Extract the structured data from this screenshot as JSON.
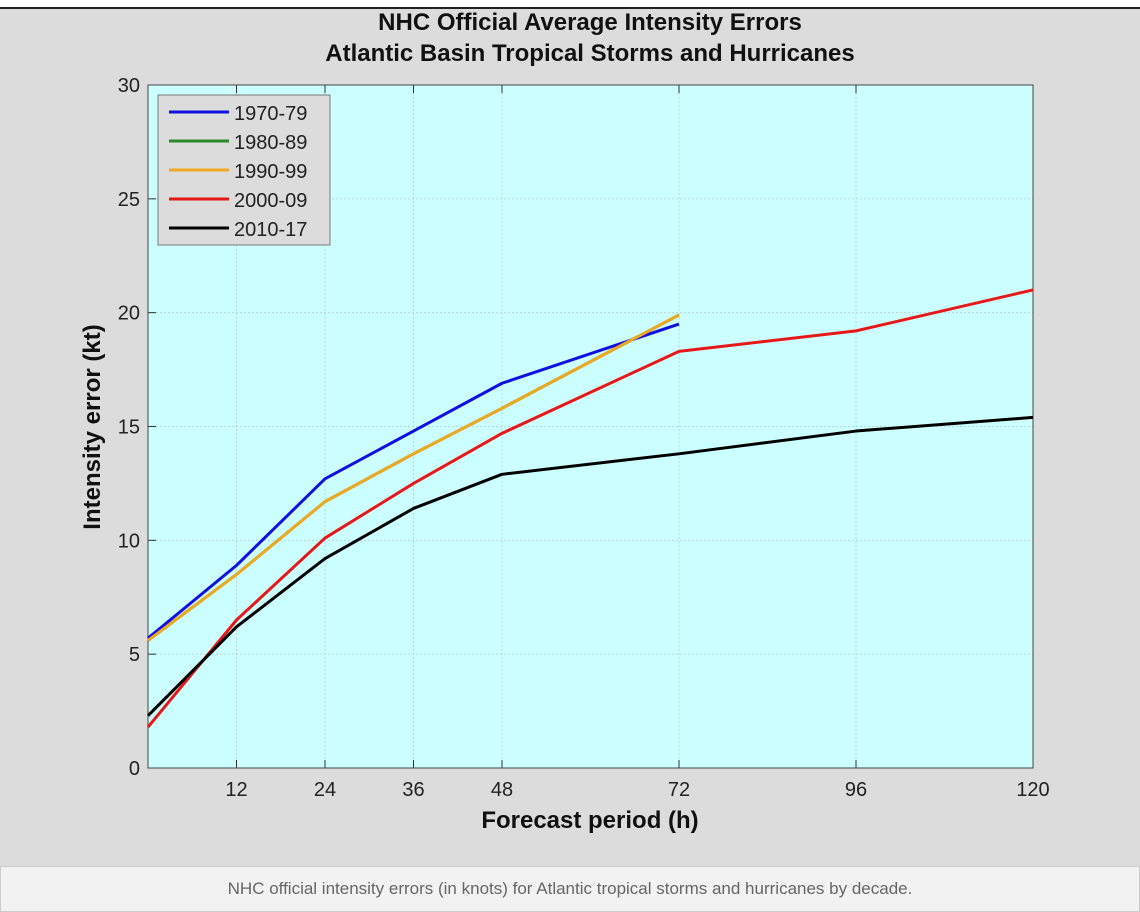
{
  "chart_data": {
    "type": "line",
    "title": [
      "NHC Official Average Intensity Errors",
      "Atlantic Basin Tropical Storms and Hurricanes"
    ],
    "xlabel": "Forecast period (h)",
    "ylabel": "Intensity error (kt)",
    "xlim": [
      0,
      120
    ],
    "ylim": [
      0,
      30
    ],
    "xticks": [
      12,
      24,
      36,
      48,
      72,
      96,
      120
    ],
    "yticks": [
      0,
      5,
      10,
      15,
      20,
      25,
      30
    ],
    "grid": true,
    "legend_position": "top-left",
    "series": [
      {
        "name": "1980-89",
        "color": "#2a8a2a",
        "x": [
          0,
          12,
          24,
          36,
          48,
          72
        ],
        "y": [
          5.6,
          8.5,
          11.7,
          13.8,
          15.8,
          19.9
        ]
      },
      {
        "name": "1970-79",
        "color": "#1010e0",
        "x": [
          0,
          12,
          24,
          36,
          48,
          72
        ],
        "y": [
          5.7,
          8.9,
          12.7,
          14.8,
          16.9,
          19.5
        ]
      },
      {
        "name": "1990-99",
        "color": "#f0a820",
        "x": [
          0,
          12,
          24,
          36,
          48,
          72
        ],
        "y": [
          5.6,
          8.5,
          11.7,
          13.8,
          15.8,
          19.9
        ]
      },
      {
        "name": "2000-09",
        "color": "#e81818",
        "x": [
          0,
          12,
          24,
          36,
          48,
          72,
          96,
          120
        ],
        "y": [
          1.8,
          6.5,
          10.1,
          12.5,
          14.7,
          18.3,
          19.2,
          21.0
        ]
      },
      {
        "name": "2010-17",
        "color": "#000000",
        "x": [
          0,
          12,
          24,
          36,
          48,
          72,
          96,
          120
        ],
        "y": [
          2.3,
          6.2,
          9.2,
          11.4,
          12.9,
          13.8,
          14.8,
          15.4
        ]
      }
    ],
    "legend_order": [
      "1970-79",
      "1980-89",
      "1990-99",
      "2000-09",
      "2010-17"
    ]
  },
  "caption": "NHC official intensity errors (in knots) for Atlantic tropical storms and hurricanes by decade.",
  "colors": {
    "plot_bg": "#ccffff",
    "figure_bg": "#dcdcdc"
  }
}
